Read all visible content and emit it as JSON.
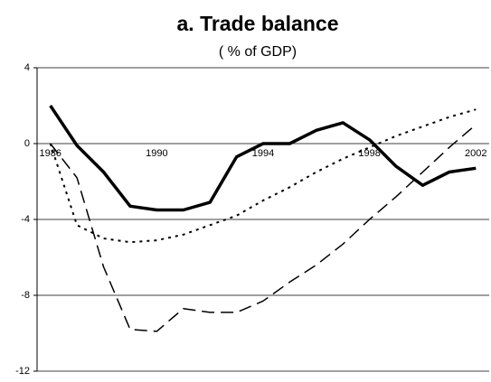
{
  "chart_data": {
    "type": "line",
    "title": "a. Trade balance",
    "subtitle": "( % of GDP)",
    "categories": [
      "1986",
      null,
      null,
      null,
      "1990",
      null,
      null,
      null,
      "1994",
      null,
      null,
      null,
      "1998",
      null,
      null,
      null,
      "2002"
    ],
    "series": [
      {
        "color": "#000000",
        "dash": "solid",
        "values": [
          2.0,
          -0.1,
          -1.5,
          -3.3,
          -3.5,
          -3.5,
          -3.1,
          -0.7,
          0.0,
          0.0,
          0.7,
          1.1,
          0.2,
          -1.2,
          -2.2,
          -1.5,
          -1.3
        ]
      },
      {
        "color": "#000000",
        "dash": "dashed",
        "values": [
          0.0,
          -1.8,
          -6.5,
          -9.8,
          -9.9,
          -8.7,
          -8.9,
          -8.9,
          -8.3,
          -7.3,
          -6.4,
          -5.3,
          -4.0,
          -2.8,
          -1.5,
          -0.2,
          1.0
        ]
      },
      {
        "color": "#000000",
        "dash": "dotted",
        "values": [
          0.0,
          -4.3,
          -5.0,
          -5.2,
          -5.1,
          -4.8,
          -4.3,
          -3.8,
          -3.0,
          -2.3,
          -1.5,
          -0.8,
          -0.2,
          0.4,
          0.9,
          1.4,
          1.8
        ]
      }
    ],
    "ylim": [
      -12,
      4
    ],
    "yticks": [
      -12,
      -8,
      -4,
      0,
      4
    ],
    "grid": true
  }
}
